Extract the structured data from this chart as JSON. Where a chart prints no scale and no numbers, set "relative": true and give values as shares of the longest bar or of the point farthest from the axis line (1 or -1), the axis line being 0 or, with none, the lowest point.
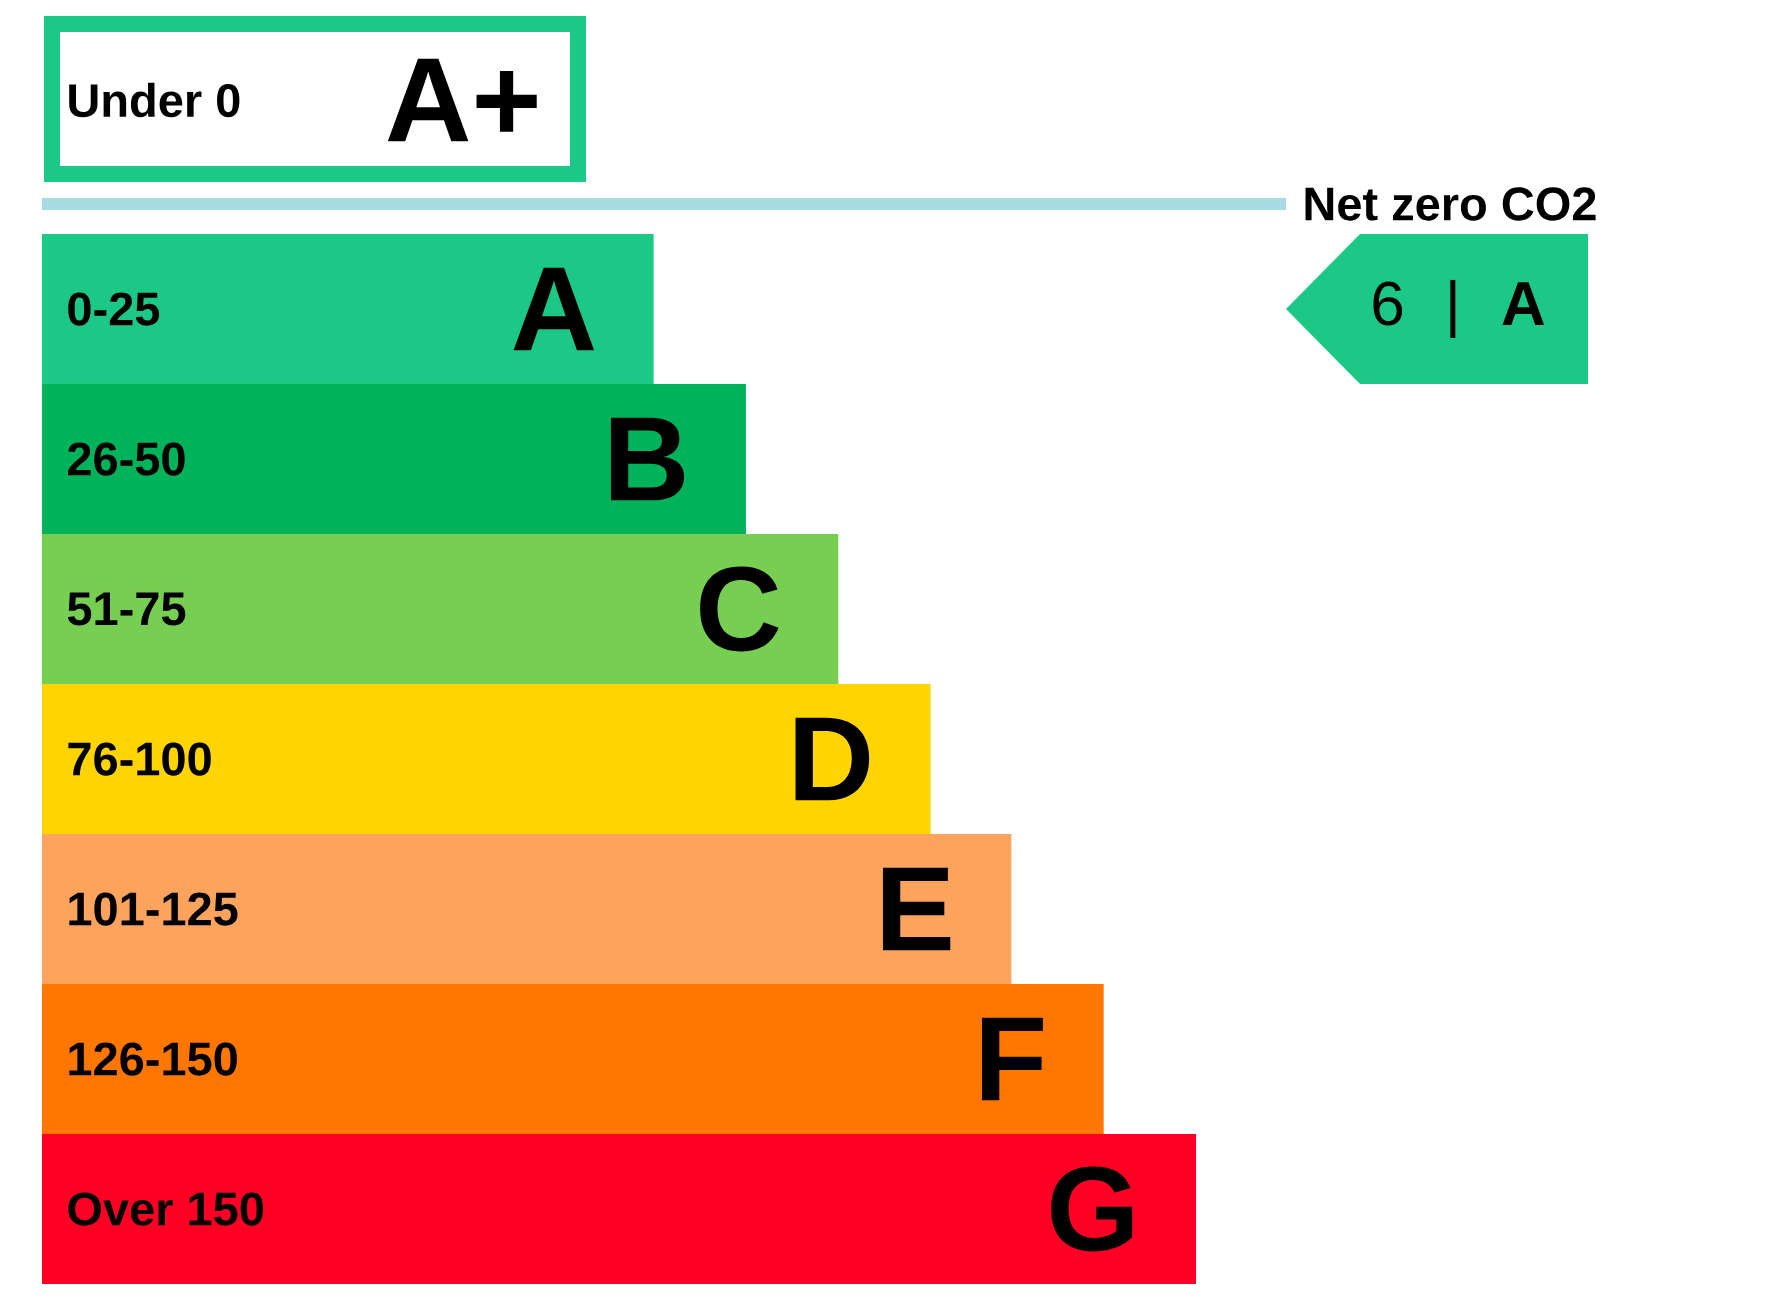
{
  "chart_data": [
    {
      "type": "other",
      "color": "#1cc886",
      "annotations": [
        "Under 0",
        "A+",
        "Net zero CO2"
      ]
    },
    {
      "type": "bar",
      "orientation": "horizontal",
      "relative": true,
      "categories": [
        "0-25",
        "26-50",
        "51-75",
        "76-100",
        "101-125",
        "126-150",
        "Over 150"
      ],
      "values": [
        0.53,
        0.61,
        0.69,
        0.77,
        0.84,
        0.92,
        1
      ],
      "colors": [
        "#1cc886",
        "#00b35a",
        "#77cf51",
        "#ffd400",
        "#fca35d",
        "#ff7700",
        "#ff0024"
      ],
      "annotations": [
        {
          "text": "A",
          "x": 0.53,
          "y": "0-25"
        },
        {
          "text": "B",
          "x": 0.61,
          "y": "26-50"
        },
        {
          "text": "C",
          "x": 0.69,
          "y": "51-75"
        },
        {
          "text": "D",
          "x": 0.77,
          "y": "76-100"
        },
        {
          "text": "E",
          "x": 0.84,
          "y": "101-125"
        },
        {
          "text": "F",
          "x": 0.92,
          "y": "126-150"
        },
        {
          "text": "G",
          "x": 1,
          "y": "Over 150"
        },
        "6 | **A**"
      ]
    }
  ]
}
